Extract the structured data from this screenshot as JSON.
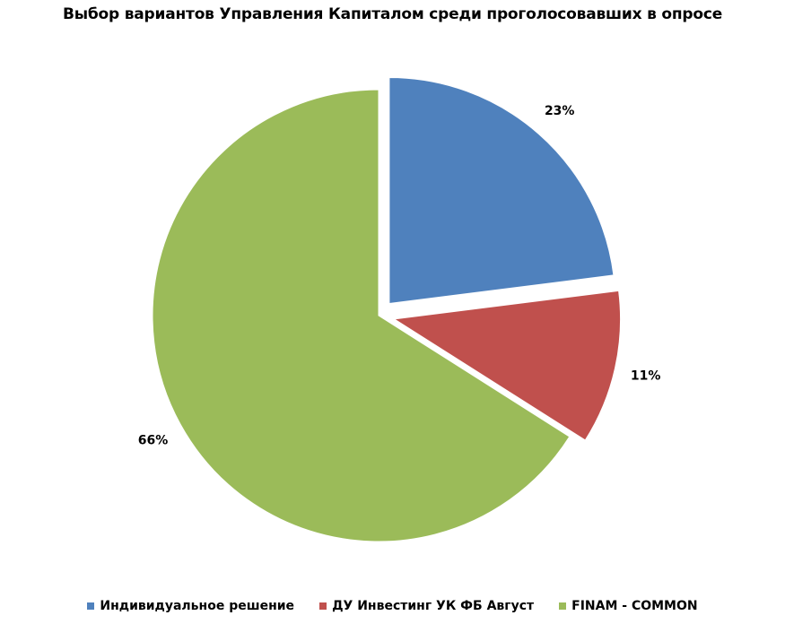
{
  "chart_data": {
    "type": "pie",
    "title": "Выбор вариантов Управления Капиталом среди проголосовавших в опросе",
    "categories": [
      "Индивидуальное решение",
      "ДУ Инвестинг УК ФБ Август",
      "FINAM - COMMON"
    ],
    "values": [
      23,
      11,
      66
    ],
    "value_labels": [
      "23%",
      "11%",
      "66%"
    ],
    "colors": [
      "#4F81BD",
      "#C0504D",
      "#9BBB59"
    ],
    "exploded": [
      true,
      true,
      false
    ],
    "legend_position": "bottom"
  }
}
